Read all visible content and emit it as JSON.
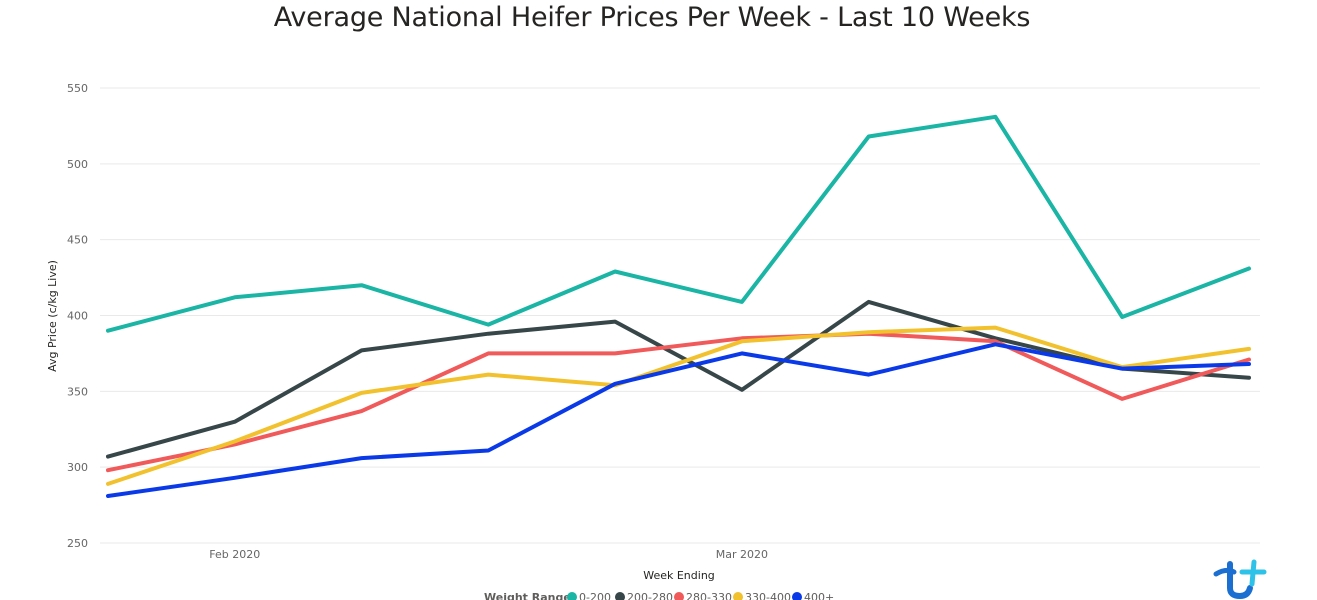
{
  "chart_data": {
    "type": "line",
    "title": "Average National Heifer Prices Per Week - Last 10 Weeks",
    "xlabel": "Week Ending",
    "ylabel": "Avg Price (c/kg Live)",
    "ylim": [
      250,
      550
    ],
    "yticks": [
      250,
      300,
      350,
      400,
      450,
      500,
      550
    ],
    "x": [
      "2020-01-24",
      "2020-01-31",
      "2020-02-07",
      "2020-02-14",
      "2020-02-21",
      "2020-02-28",
      "2020-03-06",
      "2020-03-13",
      "2020-03-20",
      "2020-03-27"
    ],
    "xtick_labels": [
      {
        "label": "Feb 2020",
        "date": "2020-01-31"
      },
      {
        "label": "Mar 2020",
        "date": "2020-02-28"
      }
    ],
    "grid": true,
    "legend_title": "Weight Range",
    "legend_position": "bottom",
    "series": [
      {
        "name": "0-200",
        "color": "#1AB5A5",
        "values": [
          390,
          412,
          420,
          394,
          429,
          409,
          518,
          531,
          399,
          431
        ]
      },
      {
        "name": "200-280",
        "color": "#374649",
        "values": [
          307,
          330,
          377,
          388,
          396,
          351,
          409,
          385,
          365,
          359
        ]
      },
      {
        "name": "280-330",
        "color": "#F05A5A",
        "values": [
          298,
          315,
          337,
          375,
          375,
          385,
          388,
          383,
          345,
          371
        ]
      },
      {
        "name": "330-400",
        "color": "#F2C12E",
        "values": [
          289,
          317,
          349,
          361,
          354,
          383,
          389,
          392,
          366,
          378
        ]
      },
      {
        "name": "400+",
        "color": "#0A3AE8",
        "values": [
          281,
          293,
          306,
          311,
          355,
          375,
          361,
          381,
          365,
          368
        ]
      }
    ]
  }
}
